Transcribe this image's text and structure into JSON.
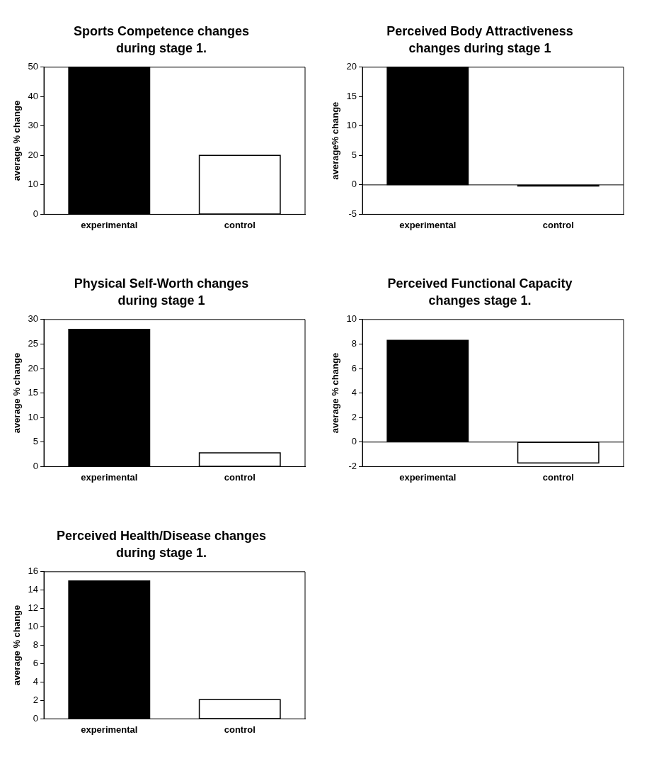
{
  "chart_data": [
    {
      "type": "bar",
      "title": "Sports Competence changes during stage 1.",
      "ylabel": "average % change",
      "categories": [
        "experimental",
        "control"
      ],
      "values": [
        50,
        20
      ],
      "colors": [
        "#000000",
        "#ffffff"
      ],
      "ylim": [
        0,
        50
      ],
      "yticks": [
        0,
        10,
        20,
        30,
        40,
        50
      ],
      "grid": false,
      "legend": false
    },
    {
      "type": "bar",
      "title": "Perceived Body Attractiveness changes during stage 1",
      "ylabel": "average% change",
      "categories": [
        "experimental",
        "control"
      ],
      "values": [
        20,
        -0.2
      ],
      "colors": [
        "#000000",
        "#ffffff"
      ],
      "ylim": [
        -5,
        20
      ],
      "yticks": [
        -5,
        0,
        5,
        10,
        15,
        20
      ],
      "ref_lines": [
        {
          "axis": "y",
          "value": 0,
          "color": "#000000"
        }
      ],
      "grid": false,
      "legend": false
    },
    {
      "type": "bar",
      "title": "Physical Self-Worth changes during stage 1",
      "ylabel": "average % change",
      "categories": [
        "experimental",
        "control"
      ],
      "values": [
        28,
        2.8
      ],
      "colors": [
        "#000000",
        "#ffffff"
      ],
      "ylim": [
        0,
        30
      ],
      "yticks": [
        0,
        5,
        10,
        15,
        20,
        25,
        30
      ],
      "grid": false,
      "legend": false
    },
    {
      "type": "bar",
      "title": "Perceived Functional Capacity changes stage 1.",
      "ylabel": "average % change",
      "categories": [
        "experimental",
        "control"
      ],
      "values": [
        8.3,
        -1.7
      ],
      "colors": [
        "#000000",
        "#ffffff"
      ],
      "ylim": [
        -2,
        10
      ],
      "yticks": [
        -2,
        0,
        2,
        4,
        6,
        8,
        10
      ],
      "ref_lines": [
        {
          "axis": "y",
          "value": 0,
          "color": "#000000"
        }
      ],
      "grid": false,
      "legend": false
    },
    {
      "type": "bar",
      "title": "Perceived Health/Disease changes during stage 1.",
      "ylabel": "average % change",
      "categories": [
        "experimental",
        "control"
      ],
      "values": [
        15,
        2.1
      ],
      "colors": [
        "#000000",
        "#ffffff"
      ],
      "ylim": [
        0,
        16
      ],
      "yticks": [
        0,
        2,
        4,
        6,
        8,
        10,
        12,
        14,
        16
      ],
      "grid": false,
      "legend": false
    }
  ]
}
